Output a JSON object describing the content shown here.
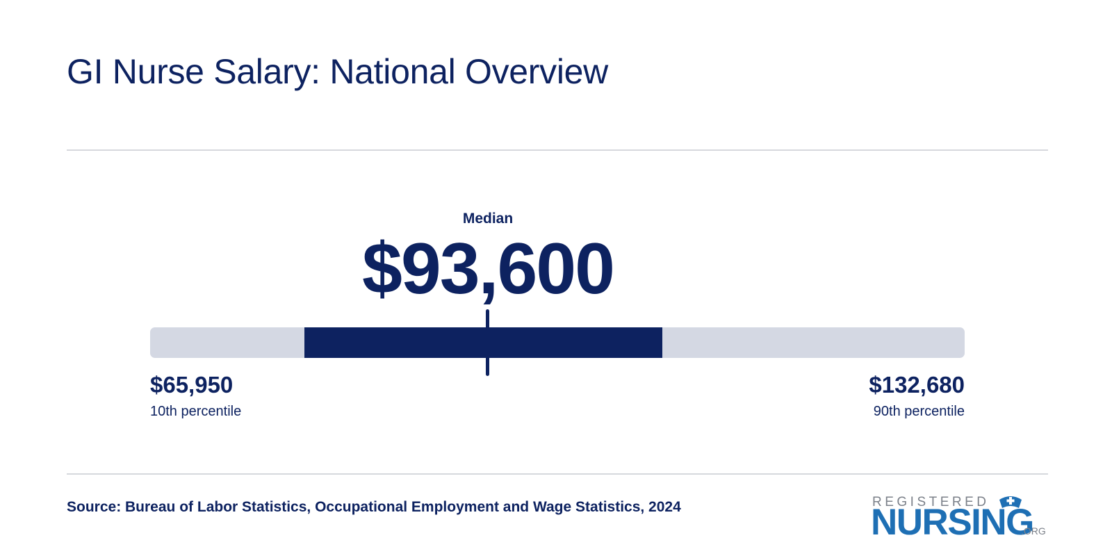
{
  "title": "GI Nurse Salary: National Overview",
  "source": "Source: Bureau of Labor Statistics, Occupational Employment and Wage Statistics, 2024",
  "logo": {
    "top": "REGISTERED",
    "main": "NURSING",
    "suffix": ".ORG"
  },
  "colors": {
    "primary": "#0d2260",
    "track": "#d4d8e3",
    "divider": "#d6d8dd",
    "logo_blue": "#1e6fb4",
    "logo_gray": "#7b8089"
  },
  "chart_data": {
    "type": "bar",
    "median_label": "Median",
    "median_text": "$93,600",
    "low_text": "$65,950",
    "low_label": "10th percentile",
    "high_text": "$132,680",
    "high_label": "90th percentile",
    "min": 65950,
    "max": 132680,
    "median": 93600,
    "range_low": 78600,
    "range_high": 107900
  }
}
